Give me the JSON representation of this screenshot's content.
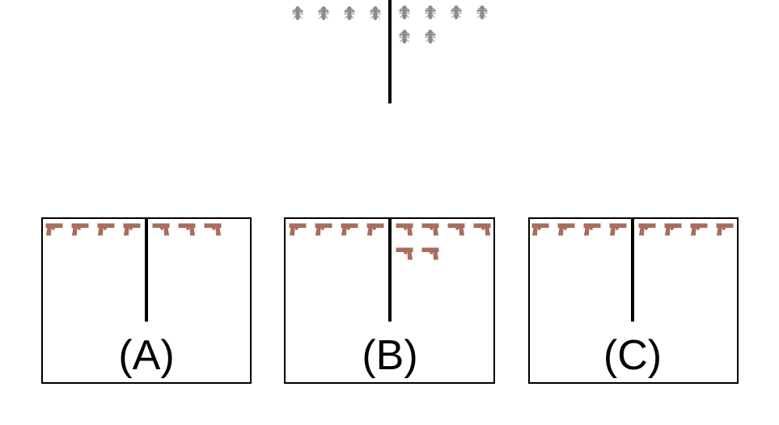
{
  "colors": {
    "fly": "#8c8c8c",
    "gun": "#a86d5c",
    "line": "#000000",
    "box_border": "#000000",
    "background": "#ffffff"
  },
  "prompt": {
    "icon": "fly-icon",
    "left_count": 4,
    "right_count": 6
  },
  "options": [
    {
      "label": "(A)",
      "left_icon": "pistol-icon",
      "left_count": 4,
      "right_icon": "pistol-flipped-icon",
      "right_count": 3
    },
    {
      "label": "(B)",
      "left_icon": "pistol-icon",
      "left_count": 4,
      "right_icon": "pistol-flipped-icon",
      "right_count": 6
    },
    {
      "label": "(C)",
      "left_icon": "pistol-icon",
      "left_count": 4,
      "right_icon": "pistol-icon",
      "right_count": 4
    }
  ]
}
